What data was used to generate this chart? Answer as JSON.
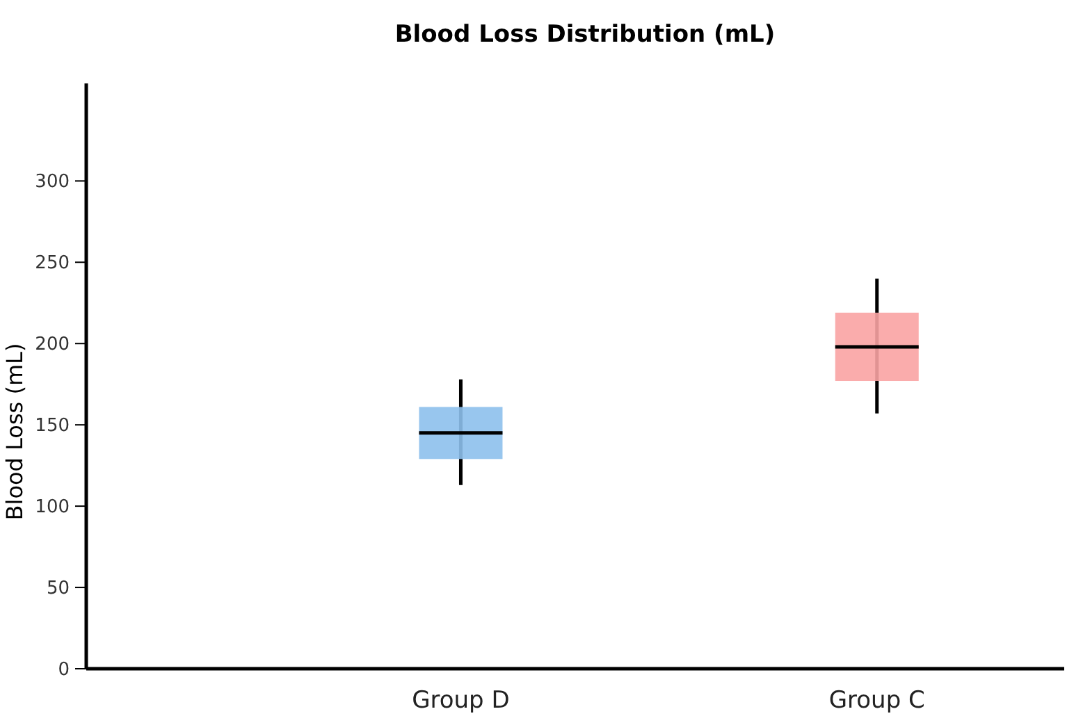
{
  "chart_data": {
    "type": "box",
    "title": "Blood Loss Distribution (mL)",
    "ylabel": "Blood Loss (mL)",
    "categories": [
      "Group D",
      "Group C"
    ],
    "boxes": [
      {
        "low": 113,
        "q1": 129,
        "median": 145,
        "q3": 161,
        "high": 178
      },
      {
        "low": 157,
        "q1": 177,
        "median": 198,
        "q3": 219,
        "high": 240
      }
    ],
    "colors": [
      "#8dc0ec",
      "#f9a3a3"
    ],
    "ylim": [
      0,
      360
    ],
    "yticks": [
      0,
      50,
      100,
      150,
      200,
      250,
      300
    ],
    "grid": false
  }
}
